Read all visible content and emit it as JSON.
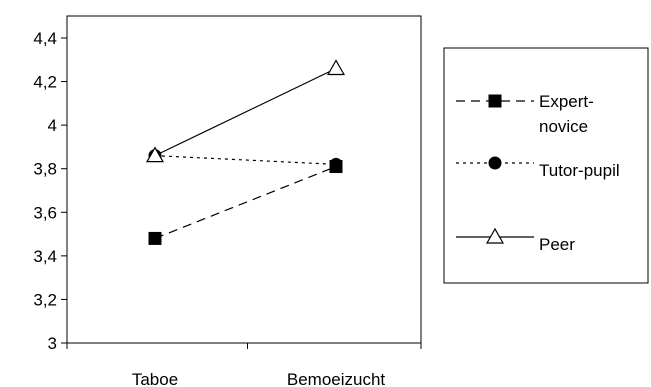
{
  "chart_data": {
    "type": "line",
    "categories": [
      "Taboe",
      "Bemoeizucht"
    ],
    "ylim": [
      3,
      4.4
    ],
    "yticks": [
      "3",
      "3,2",
      "3,4",
      "3,6",
      "3,8",
      "4",
      "4,2",
      "4,4"
    ],
    "ytick_values": [
      3,
      3.2,
      3.4,
      3.6,
      3.8,
      4,
      4.2,
      4.4
    ],
    "legend_position": "right",
    "grid": false,
    "series": [
      {
        "name_lines": [
          "Expert-",
          "novice"
        ],
        "values": [
          3.48,
          3.81
        ],
        "line_style": "dashed",
        "marker": "filled-square",
        "color": "#000000"
      },
      {
        "name_lines": [
          "Tutor-pupil"
        ],
        "values": [
          3.86,
          3.82
        ],
        "line_style": "dotted",
        "marker": "filled-circle",
        "color": "#000000"
      },
      {
        "name_lines": [
          "Peer"
        ],
        "values": [
          3.86,
          4.26
        ],
        "line_style": "solid",
        "marker": "open-triangle",
        "color": "#000000"
      }
    ]
  }
}
